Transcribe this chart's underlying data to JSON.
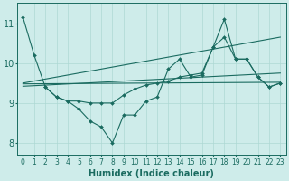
{
  "xlabel": "Humidex (Indice chaleur)",
  "bg_color": "#ceecea",
  "line_color": "#1a6b60",
  "grid_color": "#aed8d4",
  "xlim": [
    -0.5,
    23.5
  ],
  "ylim": [
    7.7,
    11.5
  ],
  "yticks": [
    8,
    9,
    10,
    11
  ],
  "xticks": [
    0,
    1,
    2,
    3,
    4,
    5,
    6,
    7,
    8,
    9,
    10,
    11,
    12,
    13,
    14,
    15,
    16,
    17,
    18,
    19,
    20,
    21,
    22,
    23
  ],
  "line1_x": [
    0,
    1,
    2,
    3,
    4,
    5,
    6,
    7,
    8,
    9,
    10,
    11,
    12,
    13,
    14,
    15,
    16,
    17,
    18,
    19,
    20,
    21,
    22,
    23
  ],
  "line1_y": [
    11.15,
    10.2,
    9.4,
    9.15,
    9.05,
    8.85,
    8.55,
    8.4,
    8.0,
    8.7,
    8.7,
    9.05,
    9.15,
    9.85,
    10.1,
    9.65,
    9.7,
    10.4,
    11.1,
    10.1,
    10.1,
    9.65,
    9.4,
    9.5
  ],
  "line2_x": [
    0,
    23
  ],
  "line2_y": [
    9.48,
    9.52
  ],
  "line3_x": [
    0,
    23
  ],
  "line3_y": [
    9.42,
    9.75
  ],
  "line4_x": [
    0,
    23
  ],
  "line4_y": [
    9.5,
    10.65
  ],
  "line5_x": [
    2,
    3,
    4,
    5,
    6,
    7,
    8,
    9,
    10,
    11,
    12,
    13,
    14,
    15,
    16,
    17,
    18,
    19,
    20,
    21,
    22,
    23
  ],
  "line5_y": [
    9.4,
    9.15,
    9.05,
    9.05,
    9.0,
    9.0,
    9.0,
    9.2,
    9.35,
    9.45,
    9.5,
    9.55,
    9.65,
    9.7,
    9.75,
    10.4,
    10.65,
    10.1,
    10.1,
    9.65,
    9.4,
    9.5
  ],
  "font_size": 6.5
}
